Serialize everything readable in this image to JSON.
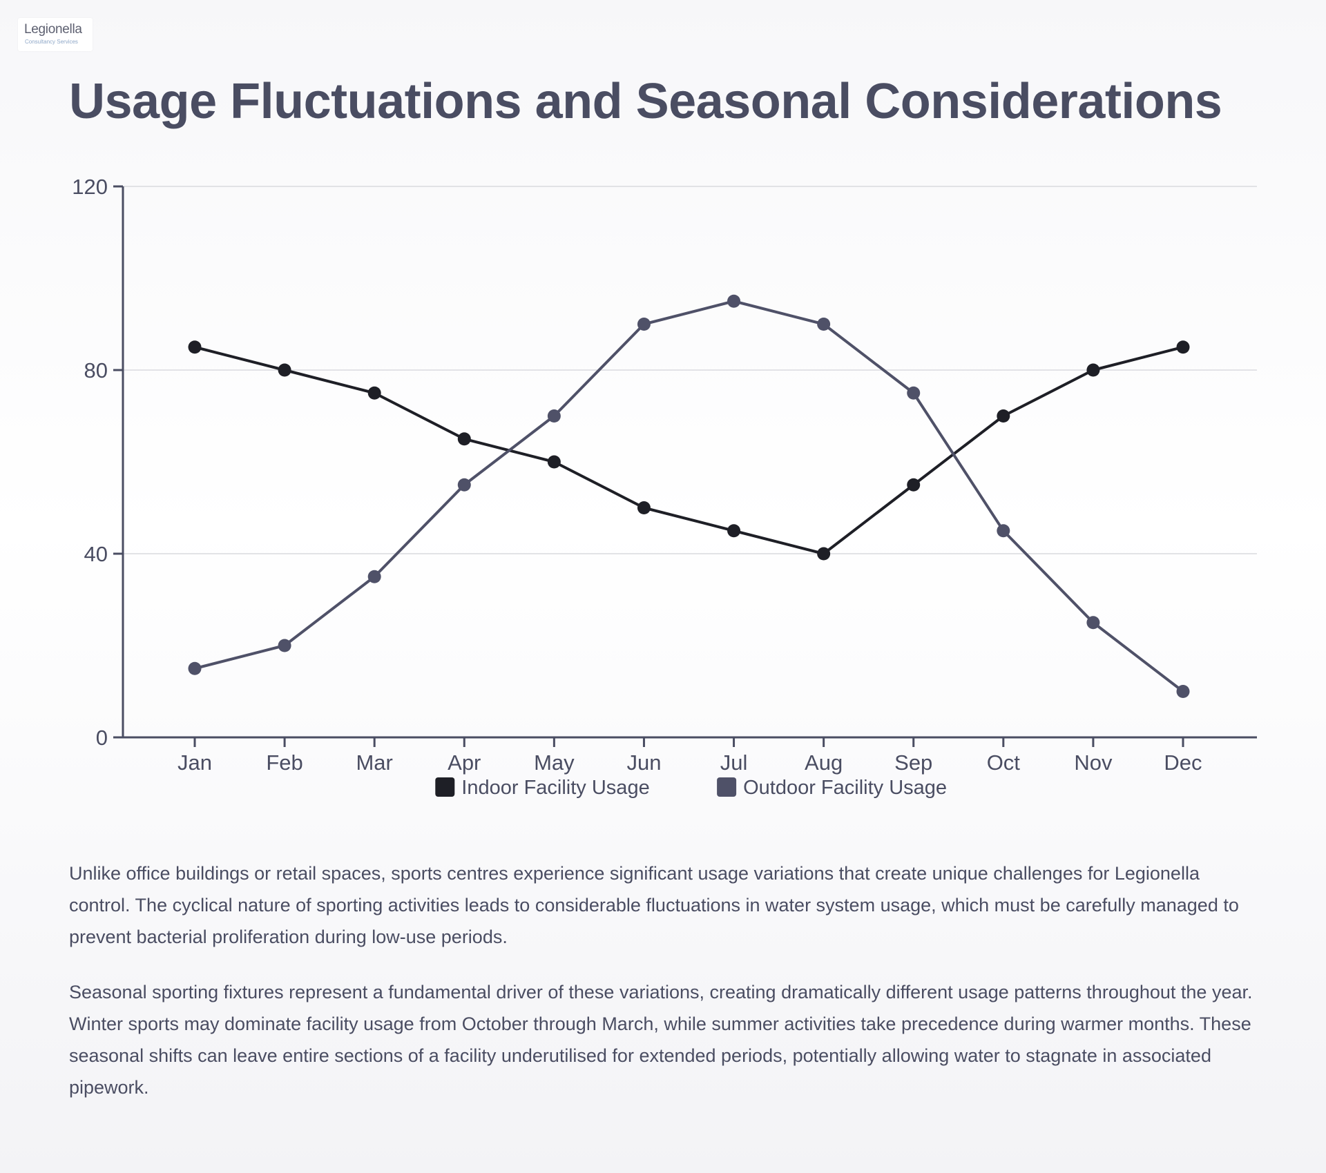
{
  "logo": {
    "text": "Legionella",
    "subtext": "Consultancy Services"
  },
  "page": {
    "title": "Usage Fluctuations and Seasonal Considerations"
  },
  "chart_data": {
    "type": "line",
    "title": "",
    "xlabel": "",
    "ylabel": "",
    "categories": [
      "Jan",
      "Feb",
      "Mar",
      "Apr",
      "May",
      "Jun",
      "Jul",
      "Aug",
      "Sep",
      "Oct",
      "Nov",
      "Dec"
    ],
    "series": [
      {
        "name": "Indoor Facility Usage",
        "color": "#1e1f26",
        "values": [
          85,
          80,
          75,
          65,
          60,
          50,
          45,
          40,
          55,
          70,
          80,
          85
        ]
      },
      {
        "name": "Outdoor Facility Usage",
        "color": "#4f5168",
        "values": [
          15,
          20,
          35,
          55,
          70,
          90,
          95,
          90,
          75,
          45,
          25,
          10
        ]
      }
    ],
    "ylim": [
      0,
      120
    ],
    "yticks": [
      0,
      40,
      80,
      120
    ],
    "grid": true,
    "legend_position": "bottom-center"
  },
  "paragraphs": [
    "Unlike office buildings or retail spaces, sports centres experience significant usage variations that create unique challenges for Legionella control. The cyclical nature of sporting activities leads to considerable fluctuations in water system usage, which must be carefully managed to prevent bacterial proliferation during low-use periods.",
    "Seasonal sporting fixtures represent a fundamental driver of these variations, creating dramatically different usage patterns throughout the year. Winter sports may dominate facility usage from October through March, while summer activities take precedence during warmer months. These seasonal shifts can leave entire sections of a facility underutilised for extended periods, potentially allowing water to stagnate in associated pipework."
  ]
}
